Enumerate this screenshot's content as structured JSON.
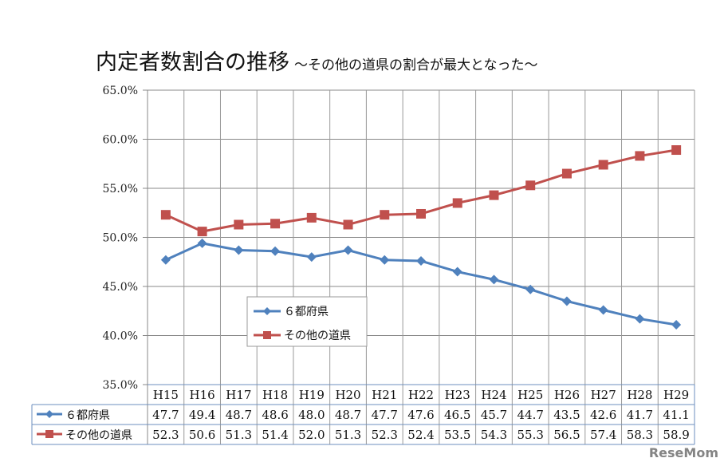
{
  "title": "内定者数割合の推移",
  "subtitle": "〜その他の道県の割合が最大となった〜",
  "watermark": "ReseMom",
  "chart_data": {
    "type": "line",
    "title": "内定者数割合の推移",
    "subtitle": "〜その他の道県の割合が最大となった〜",
    "categories": [
      "H15",
      "H16",
      "H17",
      "H18",
      "H19",
      "H20",
      "H21",
      "H22",
      "H23",
      "H24",
      "H25",
      "H26",
      "H27",
      "H28",
      "H29"
    ],
    "ylim": [
      35,
      65
    ],
    "yticks": [
      "35.0%",
      "40.0%",
      "45.0%",
      "50.0%",
      "55.0%",
      "60.0%",
      "65.0%"
    ],
    "grid": true,
    "legend_position": "center-left",
    "data_table": true,
    "series": [
      {
        "name": "６都府県",
        "color": "#4f81bd",
        "marker": "diamond",
        "values": [
          47.7,
          49.4,
          48.7,
          48.6,
          48.0,
          48.7,
          47.7,
          47.6,
          46.5,
          45.7,
          44.7,
          43.5,
          42.6,
          41.7,
          41.1
        ],
        "labels": [
          "47.7",
          "49.4",
          "48.7",
          "48.6",
          "48.0",
          "48.7",
          "47.7",
          "47.6",
          "46.5",
          "45.7",
          "44.7",
          "43.5",
          "42.6",
          "41.7",
          "41.1"
        ]
      },
      {
        "name": "その他の道県",
        "color": "#c0504d",
        "marker": "square",
        "values": [
          52.3,
          50.6,
          51.3,
          51.4,
          52.0,
          51.3,
          52.3,
          52.4,
          53.5,
          54.3,
          55.3,
          56.5,
          57.4,
          58.3,
          58.9
        ],
        "labels": [
          "52.3",
          "50.6",
          "51.3",
          "51.4",
          "52.0",
          "51.3",
          "52.3",
          "52.4",
          "53.5",
          "54.3",
          "55.3",
          "56.5",
          "57.4",
          "58.3",
          "58.9"
        ]
      }
    ]
  }
}
